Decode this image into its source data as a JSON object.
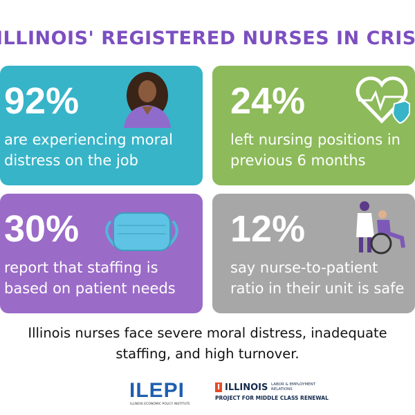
{
  "header": {
    "title": "ILLINOIS' REGISTERED NURSES IN CRISIS"
  },
  "cards": [
    {
      "stat": "92%",
      "lines": [
        "are experiencing moral",
        "distress on the job"
      ]
    },
    {
      "stat": "24%",
      "lines": [
        "left nursing positions in",
        "previous 6 months"
      ]
    },
    {
      "stat": "30%",
      "lines": [
        "report that staffing is",
        "based on patient needs"
      ]
    },
    {
      "stat": "12%",
      "lines": [
        "say nurse-to-patient",
        "ratio in their unit is safe"
      ]
    }
  ],
  "summary": [
    "Illinois nurses face severe moral distress, inadequate",
    "staffing, and high turnover."
  ],
  "logos": {
    "ilepi": {
      "name": "ILEPI",
      "subtitle": "ILLINOIS ECONOMIC POLICY INSTITUTE"
    },
    "illinois": {
      "mark": "I",
      "name": "ILLINOIS",
      "unit": [
        "LABOR & EMPLOYMENT",
        "RELATIONS"
      ],
      "project": "PROJECT FOR MIDDLE CLASS RENEWAL"
    }
  }
}
